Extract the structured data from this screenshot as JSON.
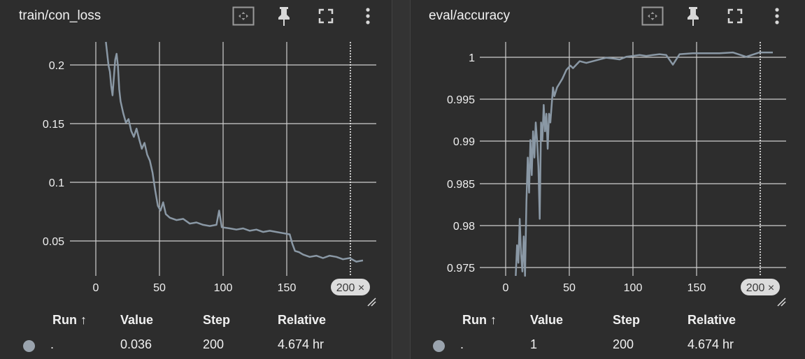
{
  "panels": [
    {
      "title": "train/con_loss",
      "step_chip": "200 ×",
      "x_ticks": [
        "0",
        "50",
        "100",
        "150"
      ],
      "y_ticks": [
        "0.2",
        "0.15",
        "0.1",
        "0.05"
      ],
      "table": {
        "headers": {
          "run": "Run ↑",
          "value": "Value",
          "step": "Step",
          "relative": "Relative"
        },
        "row": {
          "run": ".",
          "value": "0.036",
          "step": "200",
          "relative": "4.674 hr"
        }
      }
    },
    {
      "title": "eval/accuracy",
      "step_chip": "200 ×",
      "x_ticks": [
        "0",
        "50",
        "100",
        "150"
      ],
      "y_ticks": [
        "1",
        "0.995",
        "0.99",
        "0.985",
        "0.98",
        "0.975"
      ],
      "table": {
        "headers": {
          "run": "Run ↑",
          "value": "Value",
          "step": "Step",
          "relative": "Relative"
        },
        "row": {
          "run": ".",
          "value": "1",
          "step": "200",
          "relative": "4.674 hr"
        }
      }
    }
  ],
  "icons": [
    "fit-domain-icon",
    "pin-icon",
    "fullscreen-icon",
    "more-vert-icon",
    "resize-handle-icon"
  ],
  "colors": {
    "line": "#8a98a5",
    "grid": "#cfcfcf",
    "background": "#2d2d2d",
    "run_dot": "#9aa3ad"
  },
  "chart_data": [
    {
      "type": "line",
      "title": "train/con_loss",
      "xlim": [
        -20,
        210
      ],
      "ylim": [
        0.023,
        0.22
      ],
      "x_ticks": [
        0,
        50,
        100,
        150
      ],
      "y_ticks": [
        0.2,
        0.15,
        0.1,
        0.05
      ],
      "grid": true,
      "cursor_step": 200,
      "series": [
        {
          "values": [
            [
              7,
              0.22
            ],
            [
              9,
              0.2
            ],
            [
              10,
              0.195
            ],
            [
              11,
              0.183
            ],
            [
              12,
              0.175
            ],
            [
              13,
              0.19
            ],
            [
              14,
              0.205
            ],
            [
              15,
              0.21
            ],
            [
              16,
              0.2
            ],
            [
              17,
              0.18
            ],
            [
              18,
              0.17
            ],
            [
              20,
              0.16
            ],
            [
              22,
              0.152
            ],
            [
              24,
              0.155
            ],
            [
              26,
              0.145
            ],
            [
              28,
              0.14
            ],
            [
              30,
              0.147
            ],
            [
              32,
              0.138
            ],
            [
              34,
              0.13
            ],
            [
              36,
              0.135
            ],
            [
              38,
              0.125
            ],
            [
              40,
              0.12
            ],
            [
              42,
              0.11
            ],
            [
              44,
              0.095
            ],
            [
              46,
              0.082
            ],
            [
              48,
              0.078
            ],
            [
              50,
              0.085
            ],
            [
              52,
              0.075
            ],
            [
              55,
              0.072
            ],
            [
              60,
              0.07
            ],
            [
              65,
              0.071
            ],
            [
              70,
              0.067
            ],
            [
              75,
              0.068
            ],
            [
              80,
              0.066
            ],
            [
              85,
              0.065
            ],
            [
              90,
              0.066
            ],
            [
              92,
              0.078
            ],
            [
              94,
              0.064
            ],
            [
              100,
              0.063
            ],
            [
              105,
              0.062
            ],
            [
              110,
              0.063
            ],
            [
              115,
              0.061
            ],
            [
              120,
              0.062
            ],
            [
              125,
              0.06
            ],
            [
              130,
              0.061
            ],
            [
              135,
              0.06
            ],
            [
              140,
              0.059
            ],
            [
              145,
              0.058
            ],
            [
              147,
              0.05
            ],
            [
              149,
              0.044
            ],
            [
              152,
              0.043
            ],
            [
              155,
              0.041
            ],
            [
              160,
              0.039
            ],
            [
              165,
              0.04
            ],
            [
              170,
              0.038
            ],
            [
              175,
              0.04
            ],
            [
              180,
              0.039
            ],
            [
              185,
              0.037
            ],
            [
              190,
              0.038
            ],
            [
              195,
              0.035
            ],
            [
              200,
              0.036
            ]
          ]
        }
      ]
    },
    {
      "type": "line",
      "title": "eval/accuracy",
      "xlim": [
        -20,
        210
      ],
      "ylim": [
        0.9745,
        1.0012
      ],
      "x_ticks": [
        0,
        50,
        100,
        150
      ],
      "y_ticks": [
        1,
        0.995,
        0.99,
        0.985,
        0.98,
        0.975
      ],
      "grid": true,
      "cursor_step": 200,
      "series": [
        {
          "values": [
            [
              7,
              0.9745
            ],
            [
              8,
              0.978
            ],
            [
              9,
              0.976
            ],
            [
              10,
              0.981
            ],
            [
              11,
              0.977
            ],
            [
              12,
              0.975
            ],
            [
              13,
              0.979
            ],
            [
              14,
              0.974
            ],
            [
              15,
              0.983
            ],
            [
              16,
              0.988
            ],
            [
              17,
              0.984
            ],
            [
              18,
              0.99
            ],
            [
              19,
              0.986
            ],
            [
              20,
              0.991
            ],
            [
              21,
              0.988
            ],
            [
              22,
              0.992
            ],
            [
              23,
              0.99
            ],
            [
              24,
              0.987
            ],
            [
              25,
              0.981
            ],
            [
              26,
              0.992
            ],
            [
              27,
              0.99
            ],
            [
              28,
              0.994
            ],
            [
              29,
              0.991
            ],
            [
              30,
              0.993
            ],
            [
              31,
              0.989
            ],
            [
              32,
              0.993
            ],
            [
              33,
              0.992
            ],
            [
              34,
              0.994
            ],
            [
              35,
              0.996
            ],
            [
              36,
              0.995
            ],
            [
              38,
              0.996
            ],
            [
              40,
              0.9965
            ],
            [
              42,
              0.997
            ],
            [
              45,
              0.998
            ],
            [
              48,
              0.9985
            ],
            [
              50,
              0.9982
            ],
            [
              55,
              0.999
            ],
            [
              60,
              0.9988
            ],
            [
              65,
              0.999
            ],
            [
              70,
              0.9992
            ],
            [
              75,
              0.9994
            ],
            [
              80,
              0.9993
            ],
            [
              85,
              0.9992
            ],
            [
              90,
              0.9995
            ],
            [
              95,
              0.9996
            ],
            [
              100,
              0.9997
            ],
            [
              105,
              0.9996
            ],
            [
              110,
              0.9997
            ],
            [
              115,
              0.9998
            ],
            [
              120,
              0.9997
            ],
            [
              125,
              0.9986
            ],
            [
              130,
              0.9998
            ],
            [
              140,
              0.9999
            ],
            [
              150,
              0.9999
            ],
            [
              160,
              0.9999
            ],
            [
              170,
              1.0
            ],
            [
              180,
              0.9995
            ],
            [
              190,
              1.0
            ],
            [
              200,
              1.0
            ]
          ]
        }
      ]
    }
  ]
}
